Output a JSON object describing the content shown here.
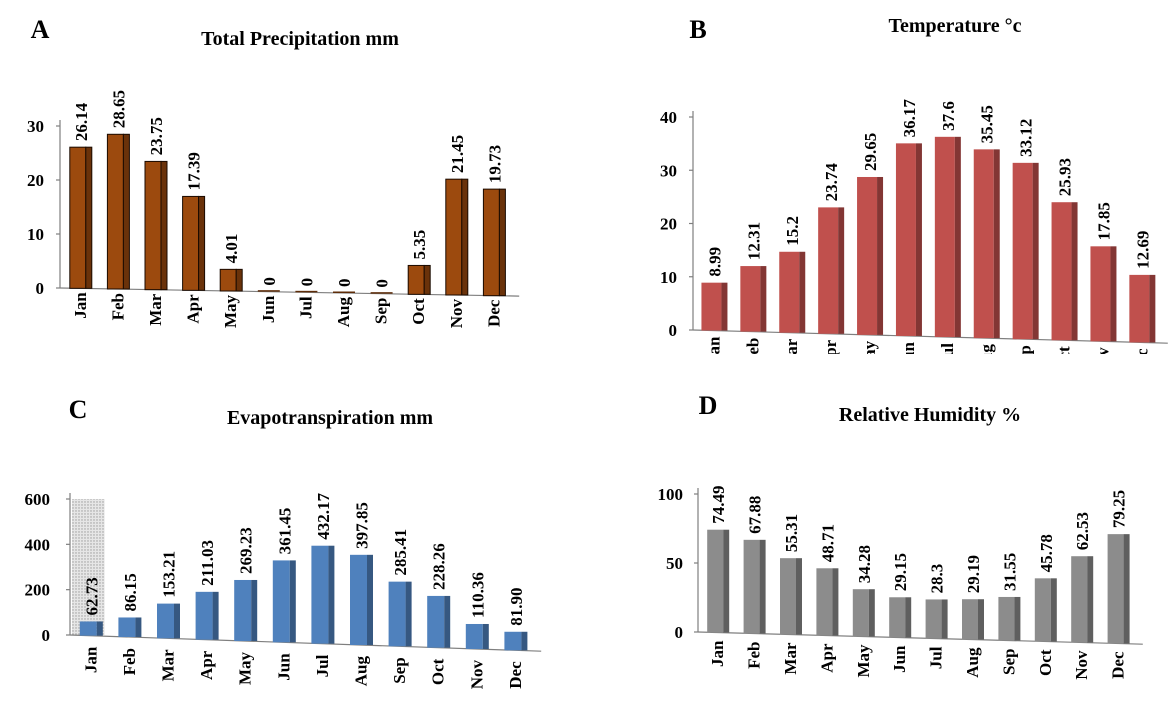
{
  "chart_data": [
    {
      "type": "bar",
      "panel_letter": "A",
      "title": "Total Precipitation mm",
      "categories": [
        "Jan",
        "Feb",
        "Mar",
        "Apr",
        "May",
        "Jun",
        "Jul",
        "Aug",
        "Sep",
        "Oct",
        "Nov",
        "Dec"
      ],
      "values": [
        26.14,
        28.65,
        23.75,
        17.39,
        4.01,
        0,
        0,
        0,
        0,
        5.35,
        21.45,
        19.73
      ],
      "value_labels": [
        "26.14",
        "28.65",
        "23.75",
        "17.39",
        "4.01",
        "0",
        "0",
        "0",
        "0",
        "5.35",
        "21.45",
        "19.73"
      ],
      "ylim": [
        0,
        30
      ],
      "yticks": [
        0,
        10,
        20,
        30
      ],
      "color": "#9c4a0e",
      "grid": false
    },
    {
      "type": "bar",
      "panel_letter": "B",
      "title": "Temperature °c",
      "categories": [
        "Jan",
        "Feb",
        "Mar",
        "Apr",
        "May",
        "Jun",
        "Jul",
        "Aug",
        "Sep",
        "Oct",
        "Nov",
        "Dec"
      ],
      "values": [
        8.99,
        12.31,
        15.2,
        23.74,
        29.65,
        36.17,
        37.6,
        35.45,
        33.12,
        25.93,
        17.85,
        12.69
      ],
      "value_labels": [
        "8.99",
        "12.31",
        "15.2",
        "23.74",
        "29.65",
        "36.17",
        "37.6",
        "35.45",
        "33.12",
        "25.93",
        "17.85",
        "12.69"
      ],
      "ylim": [
        0,
        40
      ],
      "yticks": [
        0,
        10,
        20,
        30,
        40
      ],
      "color": "#c0504d",
      "grid": false
    },
    {
      "type": "bar",
      "panel_letter": "C",
      "title": "Evapotranspiration mm",
      "categories": [
        "Jan",
        "Feb",
        "Mar",
        "Apr",
        "May",
        "Jun",
        "Jul",
        "Aug",
        "Sep",
        "Oct",
        "Nov",
        "Dec"
      ],
      "values": [
        62.73,
        86.15,
        153.21,
        211.03,
        269.23,
        361.45,
        432.17,
        397.85,
        285.41,
        228.26,
        110.36,
        81.9
      ],
      "value_labels": [
        "62.73",
        "86.15",
        "153.21",
        "211.03",
        "269.23",
        "361.45",
        "432.17",
        "397.85",
        "285.41",
        "228.26",
        "110.36",
        "81.90"
      ],
      "ylim": [
        0,
        600
      ],
      "yticks": [
        0,
        200,
        400,
        600
      ],
      "color": "#4f81bd",
      "grid": false
    },
    {
      "type": "bar",
      "panel_letter": "D",
      "title": "Relative Humidity %",
      "categories": [
        "Jan",
        "Feb",
        "Mar",
        "Apr",
        "May",
        "Jun",
        "Jul",
        "Aug",
        "Sep",
        "Oct",
        "Nov",
        "Dec"
      ],
      "values": [
        74.49,
        67.88,
        55.31,
        48.71,
        34.28,
        29.15,
        28.3,
        29.19,
        31.55,
        45.78,
        62.53,
        79.25
      ],
      "value_labels": [
        "74.49",
        "67.88",
        "55.31",
        "48.71",
        "34.28",
        "29.15",
        "28.3",
        "29.19",
        "31.55",
        "45.78",
        "62.53",
        "79.25"
      ],
      "ylim": [
        0,
        100
      ],
      "yticks": [
        0,
        50,
        100
      ],
      "color": "#8c8c8c",
      "grid": false
    }
  ]
}
